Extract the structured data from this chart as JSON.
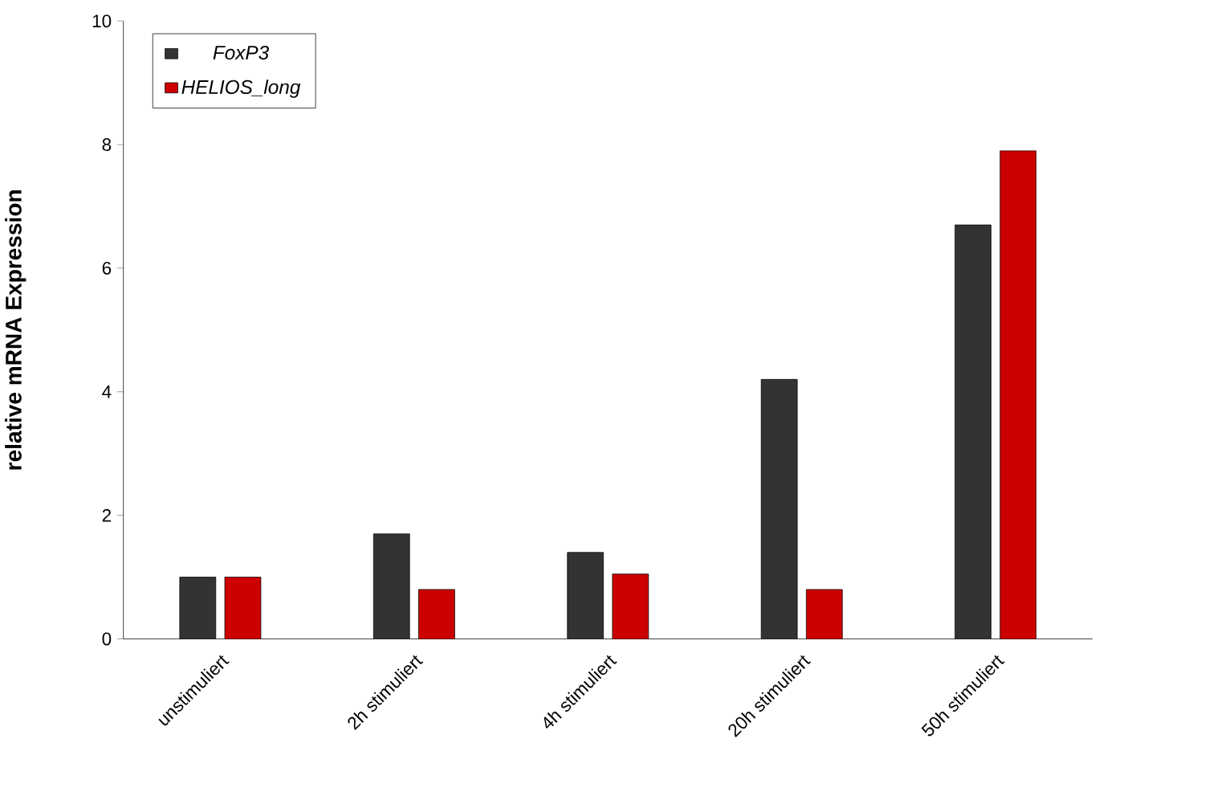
{
  "chart_data": {
    "type": "bar",
    "ylabel": "relative mRNA Expression",
    "categories": [
      "unstimuliert",
      "2h stimuliert",
      "4h stimuliert",
      "20h stimuliert",
      "50h stimuliert"
    ],
    "series": [
      {
        "name": "FoxP3",
        "color": "#333333",
        "values": [
          1.0,
          1.7,
          1.4,
          4.2,
          6.7
        ]
      },
      {
        "name": "HELIOS_long",
        "color": "#cc0000",
        "values": [
          1.0,
          0.8,
          1.05,
          0.8,
          7.9
        ]
      }
    ],
    "ylim": [
      0,
      10
    ],
    "yticks": [
      0,
      2,
      4,
      6,
      8,
      10
    ],
    "grid": false,
    "legend": "top left"
  }
}
